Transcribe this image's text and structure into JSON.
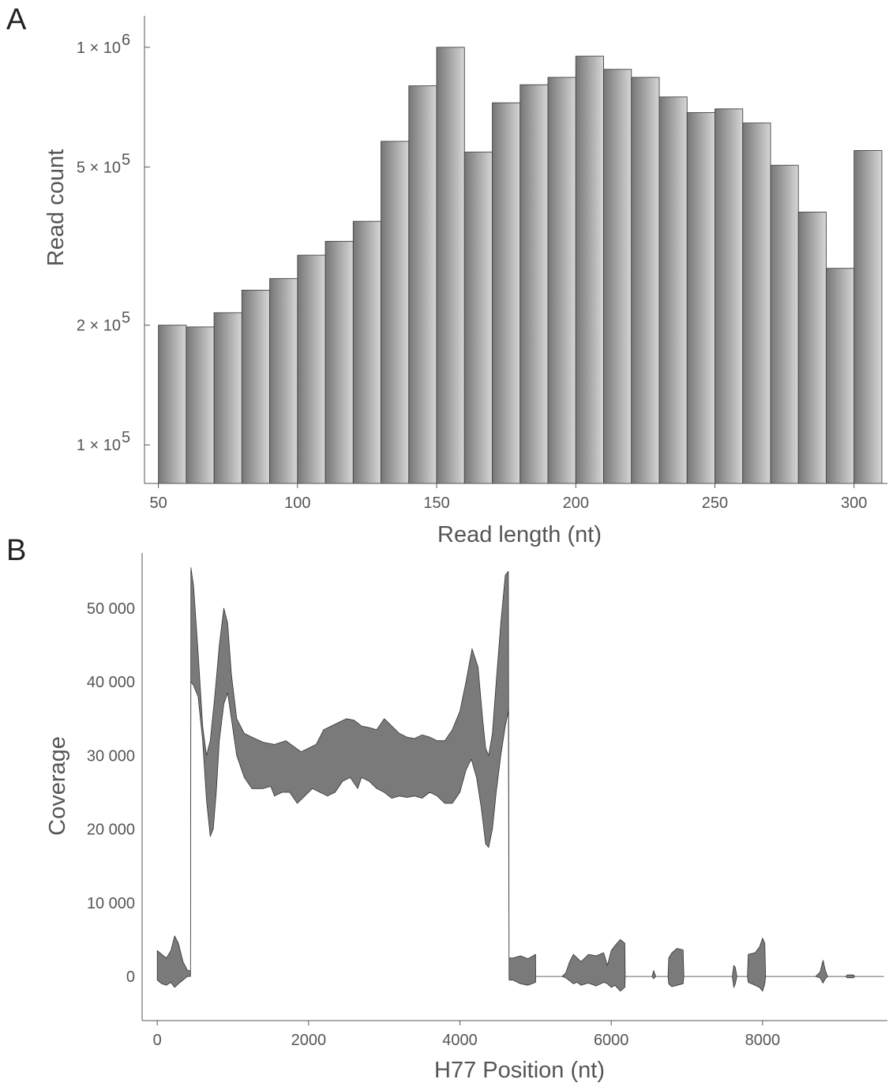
{
  "figure": {
    "panel_a_label": "A",
    "panel_b_label": "B"
  },
  "colors": {
    "bar_dark": "#767676",
    "bar_light": "#d6d6d6",
    "area_fill": "#7a7a7a",
    "axis": "#555555"
  },
  "chart_data": [
    {
      "type": "bar",
      "xlabel": "Read length (nt)",
      "ylabel": "Read count",
      "y_scale": "log",
      "ylim": [
        80000,
        1200000
      ],
      "xlim": [
        45,
        312
      ],
      "bin_width": 10,
      "x_ticks": [
        {
          "value": 50,
          "label": "50"
        },
        {
          "value": 100,
          "label": "100"
        },
        {
          "value": 150,
          "label": "150"
        },
        {
          "value": 200,
          "label": "200"
        },
        {
          "value": 250,
          "label": "250"
        },
        {
          "value": 300,
          "label": "300"
        }
      ],
      "y_ticks": [
        {
          "value": 100000,
          "mantissa": "1 × 10",
          "exponent": "5"
        },
        {
          "value": 200000,
          "mantissa": "2 × 10",
          "exponent": "5"
        },
        {
          "value": 500000,
          "mantissa": "5 × 10",
          "exponent": "5"
        },
        {
          "value": 1000000,
          "mantissa": "1 × 10",
          "exponent": "6"
        }
      ],
      "bins": [
        {
          "start": 50,
          "value": 200000
        },
        {
          "start": 60,
          "value": 198000
        },
        {
          "start": 70,
          "value": 215000
        },
        {
          "start": 80,
          "value": 245000
        },
        {
          "start": 90,
          "value": 262000
        },
        {
          "start": 100,
          "value": 300000
        },
        {
          "start": 110,
          "value": 325000
        },
        {
          "start": 120,
          "value": 365000
        },
        {
          "start": 130,
          "value": 580000
        },
        {
          "start": 140,
          "value": 800000
        },
        {
          "start": 150,
          "value": 1000000
        },
        {
          "start": 160,
          "value": 545000
        },
        {
          "start": 170,
          "value": 725000
        },
        {
          "start": 180,
          "value": 805000
        },
        {
          "start": 190,
          "value": 840000
        },
        {
          "start": 200,
          "value": 950000
        },
        {
          "start": 210,
          "value": 880000
        },
        {
          "start": 220,
          "value": 840000
        },
        {
          "start": 230,
          "value": 750000
        },
        {
          "start": 240,
          "value": 685000
        },
        {
          "start": 250,
          "value": 700000
        },
        {
          "start": 260,
          "value": 645000
        },
        {
          "start": 270,
          "value": 505000
        },
        {
          "start": 280,
          "value": 385000
        },
        {
          "start": 290,
          "value": 278000
        },
        {
          "start": 300,
          "value": 550000
        }
      ]
    },
    {
      "type": "area",
      "xlabel": "H77 Position (nt)",
      "ylabel": "Coverage",
      "xlim": [
        -200,
        9650
      ],
      "ylim": [
        -6000,
        57500
      ],
      "x_ticks": [
        {
          "value": 0,
          "label": "0"
        },
        {
          "value": 2000,
          "label": "2000"
        },
        {
          "value": 4000,
          "label": "4000"
        },
        {
          "value": 6000,
          "label": "6000"
        },
        {
          "value": 8000,
          "label": "8000"
        }
      ],
      "y_ticks": [
        {
          "value": 0,
          "label": "0"
        },
        {
          "value": 10000,
          "label": "10 000"
        },
        {
          "value": 20000,
          "label": "20 000"
        },
        {
          "value": 30000,
          "label": "30 000"
        },
        {
          "value": 40000,
          "label": "40 000"
        },
        {
          "value": 50000,
          "label": "50 000"
        }
      ],
      "upper": [
        [
          0,
          3500
        ],
        [
          60,
          3000
        ],
        [
          120,
          2500
        ],
        [
          180,
          3500
        ],
        [
          230,
          5500
        ],
        [
          280,
          4500
        ],
        [
          340,
          2000
        ],
        [
          400,
          800
        ],
        [
          440,
          800
        ],
        [
          445,
          55500
        ],
        [
          480,
          53000
        ],
        [
          540,
          44000
        ],
        [
          600,
          34000
        ],
        [
          650,
          30000
        ],
        [
          700,
          32000
        ],
        [
          760,
          38000
        ],
        [
          820,
          45000
        ],
        [
          880,
          50000
        ],
        [
          930,
          48000
        ],
        [
          980,
          41000
        ],
        [
          1050,
          35000
        ],
        [
          1150,
          33000
        ],
        [
          1250,
          32500
        ],
        [
          1400,
          31800
        ],
        [
          1550,
          31500
        ],
        [
          1700,
          32000
        ],
        [
          1900,
          30500
        ],
        [
          2000,
          31000
        ],
        [
          2100,
          31500
        ],
        [
          2200,
          33500
        ],
        [
          2300,
          34000
        ],
        [
          2400,
          34500
        ],
        [
          2500,
          35000
        ],
        [
          2600,
          34800
        ],
        [
          2700,
          34000
        ],
        [
          2800,
          33800
        ],
        [
          2900,
          33500
        ],
        [
          3000,
          35000
        ],
        [
          3100,
          34000
        ],
        [
          3200,
          33000
        ],
        [
          3300,
          32500
        ],
        [
          3400,
          32300
        ],
        [
          3500,
          32800
        ],
        [
          3600,
          32500
        ],
        [
          3700,
          32000
        ],
        [
          3800,
          32000
        ],
        [
          3900,
          33500
        ],
        [
          4000,
          36000
        ],
        [
          4080,
          40000
        ],
        [
          4160,
          44500
        ],
        [
          4240,
          42000
        ],
        [
          4300,
          35000
        ],
        [
          4340,
          31000
        ],
        [
          4380,
          30000
        ],
        [
          4430,
          33000
        ],
        [
          4480,
          40000
        ],
        [
          4540,
          48000
        ],
        [
          4600,
          54500
        ],
        [
          4640,
          55000
        ],
        [
          4650,
          2500
        ],
        [
          4700,
          2500
        ],
        [
          4800,
          2800
        ],
        [
          4900,
          2400
        ],
        [
          5000,
          3000
        ],
        [
          5001,
          0
        ],
        [
          5350,
          0
        ],
        [
          5400,
          500
        ],
        [
          5450,
          2000
        ],
        [
          5500,
          3000
        ],
        [
          5550,
          2500
        ],
        [
          5600,
          2000
        ],
        [
          5700,
          3000
        ],
        [
          5800,
          2800
        ],
        [
          5900,
          3200
        ],
        [
          5950,
          1500
        ],
        [
          6000,
          3500
        ],
        [
          6050,
          4200
        ],
        [
          6120,
          5000
        ],
        [
          6180,
          4500
        ],
        [
          6185,
          0
        ],
        [
          6540,
          0
        ],
        [
          6560,
          800
        ],
        [
          6590,
          0
        ],
        [
          6750,
          0
        ],
        [
          6760,
          2500
        ],
        [
          6800,
          3200
        ],
        [
          6870,
          3800
        ],
        [
          6950,
          3600
        ],
        [
          6960,
          0
        ],
        [
          7600,
          0
        ],
        [
          7620,
          1500
        ],
        [
          7640,
          1200
        ],
        [
          7660,
          0
        ],
        [
          7800,
          0
        ],
        [
          7810,
          3000
        ],
        [
          7900,
          3200
        ],
        [
          7960,
          4000
        ],
        [
          8000,
          5200
        ],
        [
          8030,
          4500
        ],
        [
          8040,
          0
        ],
        [
          8700,
          0
        ],
        [
          8760,
          600
        ],
        [
          8800,
          2200
        ],
        [
          8830,
          800
        ],
        [
          8860,
          0
        ],
        [
          9100,
          0
        ],
        [
          9120,
          200
        ],
        [
          9200,
          200
        ],
        [
          9220,
          0
        ],
        [
          9600,
          0
        ]
      ],
      "lower": [
        [
          0,
          -500
        ],
        [
          60,
          -1000
        ],
        [
          120,
          -1200
        ],
        [
          180,
          -800
        ],
        [
          230,
          -1500
        ],
        [
          280,
          -1000
        ],
        [
          340,
          -500
        ],
        [
          400,
          0
        ],
        [
          440,
          0
        ],
        [
          445,
          40000
        ],
        [
          480,
          39500
        ],
        [
          540,
          38000
        ],
        [
          600,
          32000
        ],
        [
          650,
          24000
        ],
        [
          700,
          19000
        ],
        [
          740,
          20000
        ],
        [
          780,
          25000
        ],
        [
          820,
          32000
        ],
        [
          880,
          37000
        ],
        [
          930,
          38500
        ],
        [
          980,
          35000
        ],
        [
          1050,
          30000
        ],
        [
          1150,
          27000
        ],
        [
          1250,
          25500
        ],
        [
          1400,
          25500
        ],
        [
          1500,
          25800
        ],
        [
          1550,
          24500
        ],
        [
          1650,
          25000
        ],
        [
          1750,
          25000
        ],
        [
          1850,
          23500
        ],
        [
          1950,
          24500
        ],
        [
          2050,
          25500
        ],
        [
          2150,
          25000
        ],
        [
          2250,
          24500
        ],
        [
          2350,
          25000
        ],
        [
          2450,
          26500
        ],
        [
          2550,
          27000
        ],
        [
          2650,
          25500
        ],
        [
          2700,
          27000
        ],
        [
          2800,
          26500
        ],
        [
          2900,
          25500
        ],
        [
          3000,
          25000
        ],
        [
          3100,
          24200
        ],
        [
          3200,
          24500
        ],
        [
          3300,
          24300
        ],
        [
          3400,
          24500
        ],
        [
          3500,
          24200
        ],
        [
          3600,
          25000
        ],
        [
          3700,
          24500
        ],
        [
          3800,
          23500
        ],
        [
          3900,
          23500
        ],
        [
          4000,
          25000
        ],
        [
          4080,
          28000
        ],
        [
          4150,
          29500
        ],
        [
          4220,
          27000
        ],
        [
          4280,
          23000
        ],
        [
          4340,
          18000
        ],
        [
          4380,
          17500
        ],
        [
          4430,
          20000
        ],
        [
          4480,
          25000
        ],
        [
          4540,
          30000
        ],
        [
          4600,
          34000
        ],
        [
          4640,
          36000
        ],
        [
          4650,
          -500
        ],
        [
          4700,
          -500
        ],
        [
          4800,
          -1000
        ],
        [
          4900,
          -1200
        ],
        [
          5000,
          -800
        ],
        [
          5001,
          0
        ],
        [
          5350,
          0
        ],
        [
          5400,
          -200
        ],
        [
          5450,
          -600
        ],
        [
          5500,
          -1000
        ],
        [
          5550,
          -800
        ],
        [
          5600,
          -1200
        ],
        [
          5700,
          -900
        ],
        [
          5800,
          -1300
        ],
        [
          5900,
          -800
        ],
        [
          5950,
          -1000
        ],
        [
          6000,
          -1500
        ],
        [
          6050,
          -1200
        ],
        [
          6120,
          -2000
        ],
        [
          6180,
          -1500
        ],
        [
          6185,
          0
        ],
        [
          6540,
          0
        ],
        [
          6560,
          -300
        ],
        [
          6590,
          0
        ],
        [
          6750,
          0
        ],
        [
          6760,
          -1000
        ],
        [
          6800,
          -1400
        ],
        [
          6870,
          -1200
        ],
        [
          6950,
          -1000
        ],
        [
          6960,
          0
        ],
        [
          7600,
          0
        ],
        [
          7620,
          -1500
        ],
        [
          7640,
          -1000
        ],
        [
          7660,
          0
        ],
        [
          7800,
          0
        ],
        [
          7810,
          -800
        ],
        [
          7900,
          -1200
        ],
        [
          7960,
          -1500
        ],
        [
          8000,
          -2000
        ],
        [
          8030,
          -1000
        ],
        [
          8040,
          0
        ],
        [
          8700,
          0
        ],
        [
          8760,
          -200
        ],
        [
          8800,
          -900
        ],
        [
          8830,
          -300
        ],
        [
          8860,
          0
        ],
        [
          9100,
          0
        ],
        [
          9120,
          -200
        ],
        [
          9200,
          -200
        ],
        [
          9220,
          0
        ],
        [
          9600,
          0
        ]
      ]
    }
  ]
}
